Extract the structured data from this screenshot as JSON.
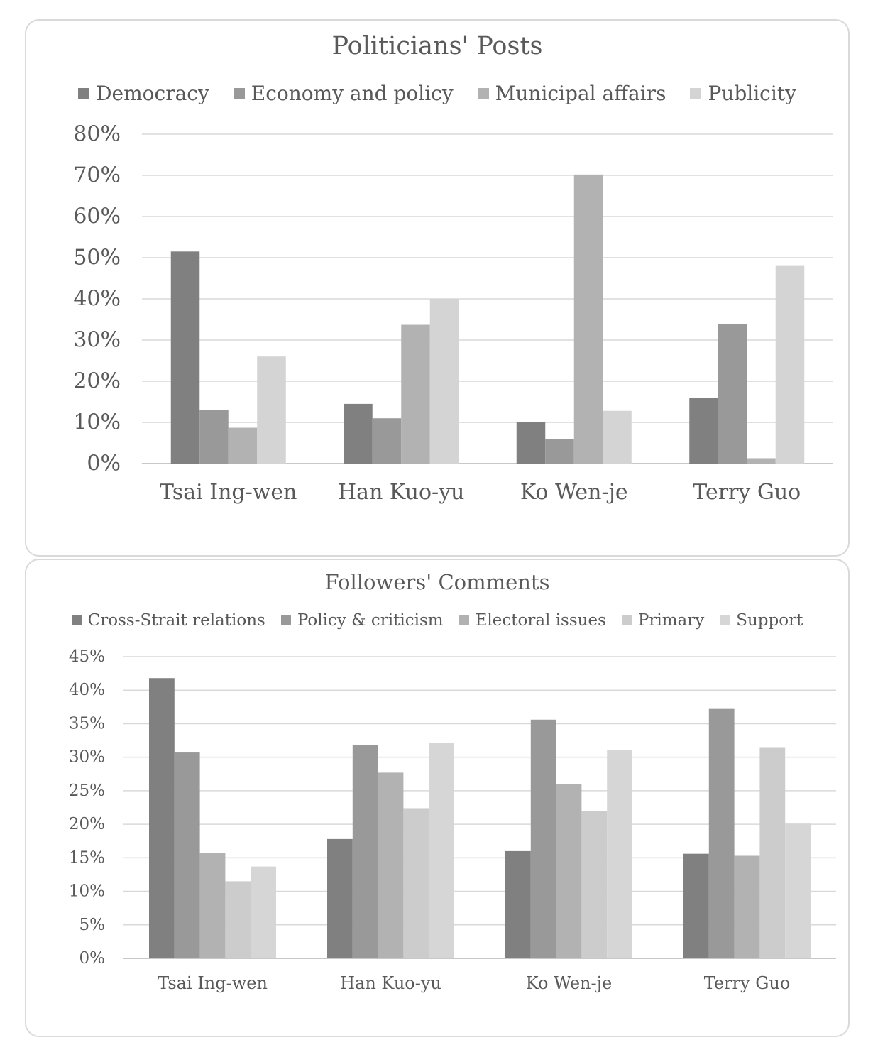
{
  "chart_data": [
    {
      "type": "bar",
      "title": "Politicians' Posts",
      "categories": [
        "Tsai Ing-wen",
        "Han Kuo-yu",
        "Ko Wen-je",
        "Terry Guo"
      ],
      "series": [
        {
          "name": "Democracy",
          "color": "#808080",
          "values": [
            51.5,
            14.5,
            10,
            16
          ]
        },
        {
          "name": "Economy and policy",
          "color": "#999999",
          "values": [
            13,
            11,
            6,
            33.8
          ]
        },
        {
          "name": "Municipal affairs",
          "color": "#b2b2b2",
          "values": [
            8.7,
            33.7,
            70.2,
            1.3
          ]
        },
        {
          "name": "Publicity",
          "color": "#d4d4d4",
          "values": [
            26,
            40,
            12.8,
            48
          ]
        }
      ],
      "ylim": [
        0,
        80
      ],
      "yticks": [
        "0%",
        "10%",
        "20%",
        "30%",
        "40%",
        "50%",
        "60%",
        "70%",
        "80%"
      ],
      "grid": true,
      "legend_position": "top"
    },
    {
      "type": "bar",
      "title": "Followers' Comments",
      "categories": [
        "Tsai Ing-wen",
        "Han Kuo-yu",
        "Ko Wen-je",
        "Terry Guo"
      ],
      "series": [
        {
          "name": "Cross-Strait relations",
          "color": "#808080",
          "values": [
            41.8,
            17.8,
            16,
            15.6
          ]
        },
        {
          "name": "Policy & criticism",
          "color": "#999999",
          "values": [
            30.7,
            31.8,
            35.6,
            37.2
          ]
        },
        {
          "name": "Electoral issues",
          "color": "#b2b2b2",
          "values": [
            15.7,
            27.7,
            26,
            15.3
          ]
        },
        {
          "name": "Primary",
          "color": "#cccccc",
          "values": [
            11.5,
            22.4,
            22,
            31.5
          ]
        },
        {
          "name": "Support",
          "color": "#d6d6d6",
          "values": [
            13.7,
            32.1,
            31.1,
            20.1
          ]
        }
      ],
      "ylim": [
        0,
        45
      ],
      "yticks": [
        "0%",
        "5%",
        "10%",
        "15%",
        "20%",
        "25%",
        "30%",
        "35%",
        "40%",
        "45%"
      ],
      "grid": true,
      "legend_position": "top"
    }
  ]
}
